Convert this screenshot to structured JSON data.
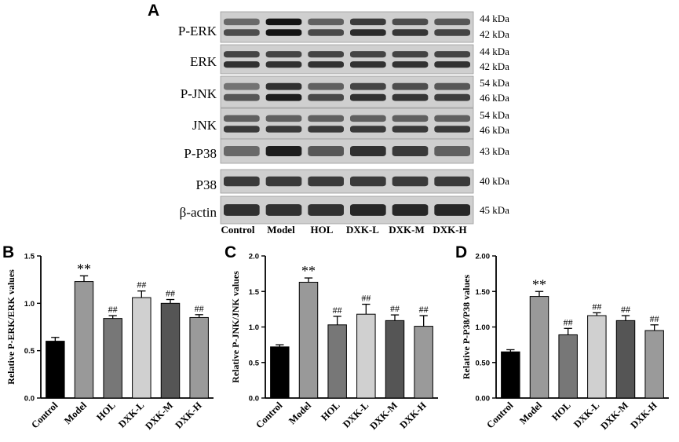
{
  "blot": {
    "panel_letter": "A",
    "rows": [
      {
        "label": "P-ERK",
        "kda": [
          "44 kDa",
          "42 kDa"
        ],
        "intensity": [
          [
            0.55,
            0.7
          ],
          [
            1.0,
            1.0
          ],
          [
            0.6,
            0.72
          ],
          [
            0.8,
            0.88
          ],
          [
            0.7,
            0.82
          ],
          [
            0.65,
            0.75
          ]
        ]
      },
      {
        "label": "ERK",
        "kda": [
          "44 kDa",
          "42 kDa"
        ],
        "intensity": [
          [
            0.75,
            0.85
          ],
          [
            0.75,
            0.85
          ],
          [
            0.75,
            0.85
          ],
          [
            0.75,
            0.85
          ],
          [
            0.75,
            0.85
          ],
          [
            0.75,
            0.85
          ]
        ]
      },
      {
        "label": "P-JNK",
        "kda": [
          "54 kDa",
          "46 kDa"
        ],
        "intensity": [
          [
            0.5,
            0.65
          ],
          [
            0.85,
            0.95
          ],
          [
            0.6,
            0.72
          ],
          [
            0.75,
            0.85
          ],
          [
            0.7,
            0.82
          ],
          [
            0.65,
            0.78
          ]
        ]
      },
      {
        "label": "JNK",
        "kda": [
          "54 kDa",
          "46 kDa"
        ],
        "intensity": [
          [
            0.6,
            0.8
          ],
          [
            0.6,
            0.8
          ],
          [
            0.6,
            0.8
          ],
          [
            0.6,
            0.8
          ],
          [
            0.6,
            0.8
          ],
          [
            0.6,
            0.8
          ]
        ]
      },
      {
        "label": "P-P38",
        "kda": [
          "43 kDa"
        ],
        "intensity": [
          [
            0.55
          ],
          [
            0.95
          ],
          [
            0.65
          ],
          [
            0.85
          ],
          [
            0.8
          ],
          [
            0.6
          ]
        ]
      },
      {
        "label": "P38",
        "kda": [
          "40 kDa"
        ],
        "intensity": [
          [
            0.8
          ],
          [
            0.8
          ],
          [
            0.8
          ],
          [
            0.8
          ],
          [
            0.8
          ],
          [
            0.8
          ]
        ]
      },
      {
        "label": "β-actin",
        "kda": [
          "45 kDa"
        ],
        "intensity": [
          [
            0.85
          ],
          [
            0.85
          ],
          [
            0.85
          ],
          [
            0.9
          ],
          [
            0.9
          ],
          [
            0.9
          ]
        ]
      }
    ],
    "lanes": [
      "Control",
      "Model",
      "HOL",
      "DXK-L",
      "DXK-M",
      "DXK-H"
    ]
  },
  "chart_data": [
    {
      "panel_letter": "B",
      "type": "bar",
      "categories": [
        "Control",
        "Model",
        "HOL",
        "DXK-L",
        "DXK-M",
        "DXK-H"
      ],
      "values": [
        0.6,
        1.23,
        0.84,
        1.06,
        1.0,
        0.85
      ],
      "errors": [
        0.04,
        0.06,
        0.03,
        0.07,
        0.04,
        0.03
      ],
      "significance": [
        "",
        "**",
        "##",
        "##",
        "##",
        "##"
      ],
      "bar_colors": [
        "#000000",
        "#999999",
        "#777777",
        "#d0d0d0",
        "#555555",
        "#9a9a9a"
      ],
      "ylabel": "Relative P-ERK/ERK values",
      "ylim": [
        0,
        1.5
      ],
      "yticks": [
        0.0,
        0.5,
        1.0,
        1.5
      ],
      "ytick_labels": [
        "0.0",
        "0.5",
        "1.0",
        "1.5"
      ]
    },
    {
      "panel_letter": "C",
      "type": "bar",
      "categories": [
        "Control",
        "Model",
        "HOL",
        "DXK-L",
        "DXK-M",
        "DXK-H"
      ],
      "values": [
        0.72,
        1.63,
        1.03,
        1.18,
        1.09,
        1.01
      ],
      "errors": [
        0.03,
        0.06,
        0.12,
        0.14,
        0.08,
        0.15
      ],
      "significance": [
        "",
        "**",
        "##",
        "##",
        "##",
        "##"
      ],
      "bar_colors": [
        "#000000",
        "#999999",
        "#777777",
        "#d0d0d0",
        "#555555",
        "#9a9a9a"
      ],
      "ylabel": "Relative P-JNK/JNK values",
      "ylim": [
        0,
        2.0
      ],
      "yticks": [
        0.0,
        0.5,
        1.0,
        1.5,
        2.0
      ],
      "ytick_labels": [
        "0.0",
        "0.5",
        "1.0",
        "1.5",
        "2.0"
      ]
    },
    {
      "panel_letter": "D",
      "type": "bar",
      "categories": [
        "Control",
        "Model",
        "HOL",
        "DXK-L",
        "DXK-M",
        "DXK-H"
      ],
      "values": [
        0.65,
        1.43,
        0.89,
        1.16,
        1.09,
        0.95
      ],
      "errors": [
        0.03,
        0.07,
        0.09,
        0.04,
        0.07,
        0.08
      ],
      "significance": [
        "",
        "**",
        "##",
        "##",
        "##",
        "##"
      ],
      "bar_colors": [
        "#000000",
        "#999999",
        "#777777",
        "#d0d0d0",
        "#555555",
        "#9a9a9a"
      ],
      "ylabel": "Relative P-P38/P38 values",
      "ylim": [
        0,
        2.0
      ],
      "yticks": [
        0.0,
        0.5,
        1.0,
        1.5,
        2.0
      ],
      "ytick_labels": [
        "0.00",
        "0.50",
        "1.00",
        "1.50",
        "2.00"
      ]
    }
  ]
}
